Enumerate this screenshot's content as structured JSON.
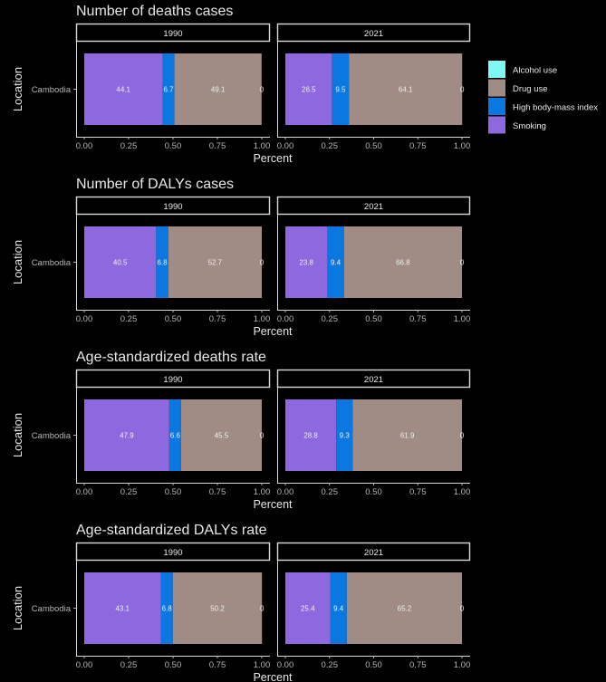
{
  "colors": {
    "background": "#000000",
    "text": "#e8e8e8",
    "axis_text": "#b5b5b5",
    "strip_border": "#d9d9d9",
    "bar_label": "#eeeeee"
  },
  "legend": {
    "items": [
      {
        "label": "Alcohol use",
        "color": "#7ff7f5"
      },
      {
        "label": "Drug use",
        "color": "#a08c84"
      },
      {
        "label": "High body-mass index",
        "color": "#0a78e0"
      },
      {
        "label": "Smoking",
        "color": "#8e68de"
      }
    ]
  },
  "chart_data": [
    {
      "type": "bar",
      "title": "Number of deaths cases",
      "xlabel": "Percent",
      "ylabel": "Location",
      "categories": [
        "Cambodia"
      ],
      "xlim": [
        0,
        1
      ],
      "xticks": [
        "0.00",
        "0.25",
        "0.50",
        "0.75",
        "1.00"
      ],
      "facets": [
        {
          "label": "1990",
          "segments": [
            {
              "series": "Smoking",
              "value": 44.1
            },
            {
              "series": "High body-mass index",
              "value": 6.7
            },
            {
              "series": "Drug use",
              "value": 49.1
            },
            {
              "series": "Alcohol use",
              "value": 0
            }
          ]
        },
        {
          "label": "2021",
          "segments": [
            {
              "series": "Smoking",
              "value": 26.5
            },
            {
              "series": "High body-mass index",
              "value": 9.5
            },
            {
              "series": "Drug use",
              "value": 64.1
            },
            {
              "series": "Alcohol use",
              "value": 0
            }
          ]
        }
      ]
    },
    {
      "type": "bar",
      "title": "Number of DALYs cases",
      "xlabel": "Percent",
      "ylabel": "Location",
      "categories": [
        "Cambodia"
      ],
      "xlim": [
        0,
        1
      ],
      "xticks": [
        "0.00",
        "0.25",
        "0.50",
        "0.75",
        "1.00"
      ],
      "facets": [
        {
          "label": "1990",
          "segments": [
            {
              "series": "Smoking",
              "value": 40.5
            },
            {
              "series": "High body-mass index",
              "value": 6.8
            },
            {
              "series": "Drug use",
              "value": 52.7
            },
            {
              "series": "Alcohol use",
              "value": 0
            }
          ]
        },
        {
          "label": "2021",
          "segments": [
            {
              "series": "Smoking",
              "value": 23.8
            },
            {
              "series": "High body-mass index",
              "value": 9.4
            },
            {
              "series": "Drug use",
              "value": 66.8
            },
            {
              "series": "Alcohol use",
              "value": 0
            }
          ]
        }
      ]
    },
    {
      "type": "bar",
      "title": "Age-standardized deaths rate",
      "xlabel": "Percent",
      "ylabel": "Location",
      "categories": [
        "Cambodia"
      ],
      "xlim": [
        0,
        1
      ],
      "xticks": [
        "0.00",
        "0.25",
        "0.50",
        "0.75",
        "1.00"
      ],
      "facets": [
        {
          "label": "1990",
          "segments": [
            {
              "series": "Smoking",
              "value": 47.9
            },
            {
              "series": "High body-mass index",
              "value": 6.6
            },
            {
              "series": "Drug use",
              "value": 45.5
            },
            {
              "series": "Alcohol use",
              "value": 0
            }
          ]
        },
        {
          "label": "2021",
          "segments": [
            {
              "series": "Smoking",
              "value": 28.8
            },
            {
              "series": "High body-mass index",
              "value": 9.3
            },
            {
              "series": "Drug use",
              "value": 61.9
            },
            {
              "series": "Alcohol use",
              "value": 0
            }
          ]
        }
      ]
    },
    {
      "type": "bar",
      "title": "Age-standardized DALYs rate",
      "xlabel": "Percent",
      "ylabel": "Location",
      "categories": [
        "Cambodia"
      ],
      "xlim": [
        0,
        1
      ],
      "xticks": [
        "0.00",
        "0.25",
        "0.50",
        "0.75",
        "1.00"
      ],
      "facets": [
        {
          "label": "1990",
          "segments": [
            {
              "series": "Smoking",
              "value": 43.1
            },
            {
              "series": "High body-mass index",
              "value": 6.8
            },
            {
              "series": "Drug use",
              "value": 50.2
            },
            {
              "series": "Alcohol use",
              "value": 0
            }
          ]
        },
        {
          "label": "2021",
          "segments": [
            {
              "series": "Smoking",
              "value": 25.4
            },
            {
              "series": "High body-mass index",
              "value": 9.4
            },
            {
              "series": "Drug use",
              "value": 65.2
            },
            {
              "series": "Alcohol use",
              "value": 0
            }
          ]
        }
      ]
    }
  ]
}
